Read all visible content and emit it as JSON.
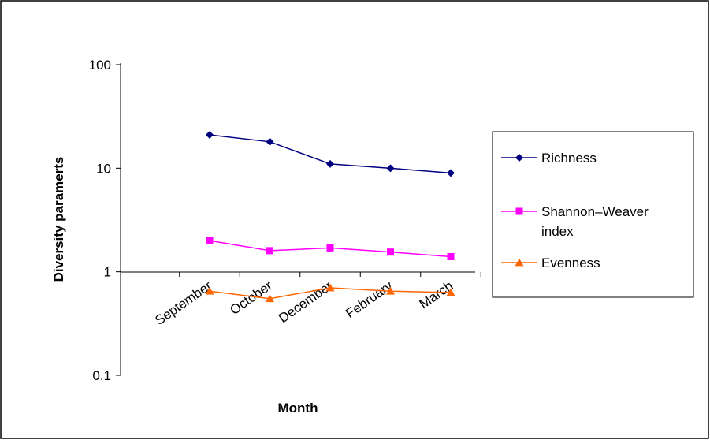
{
  "chart_data": {
    "type": "line",
    "title": "",
    "xlabel": "Month",
    "ylabel": "Diversity paramerts",
    "yscale": "log",
    "ylim": [
      0.1,
      100
    ],
    "y_ticks": [
      "0.1",
      "1",
      "10",
      "100"
    ],
    "categories": [
      "September",
      "October",
      "December",
      "February",
      "March"
    ],
    "grid": false,
    "legend": "right",
    "series": [
      {
        "name": "Richness",
        "marker": "diamond",
        "color": "#000080",
        "values": [
          21,
          18,
          11,
          10,
          9
        ]
      },
      {
        "name": "Shannon–Weaver index",
        "legend_lines": [
          "Shannon–Weaver",
          "index"
        ],
        "marker": "square",
        "color": "#ff00ff",
        "values": [
          2.0,
          1.6,
          1.7,
          1.55,
          1.4
        ]
      },
      {
        "name": "Evenness",
        "marker": "triangle",
        "color": "#ff6600",
        "values": [
          0.65,
          0.55,
          0.7,
          0.65,
          0.63
        ]
      }
    ]
  }
}
